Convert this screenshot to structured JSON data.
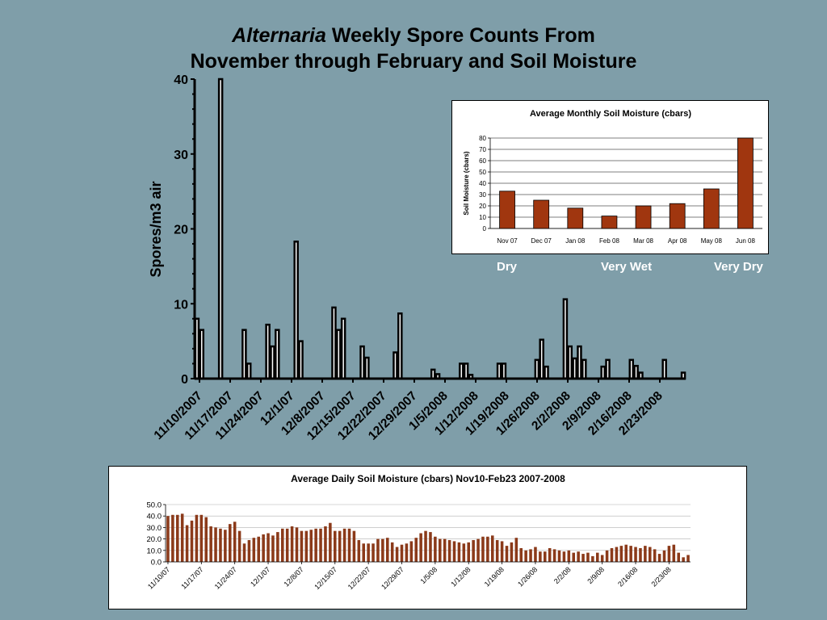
{
  "title": {
    "italic": "Alternaria",
    "rest_line1": "Weekly Spore Counts From",
    "line2": "November through February and Soil Moisture"
  },
  "labels": {
    "dry": "Dry",
    "very_wet": "Very Wet",
    "very_dry": "Very Dry"
  },
  "colors": {
    "background": "#7f9ea9",
    "bar_fill": "#a0360f"
  },
  "chart_data": [
    {
      "type": "bar",
      "title": "",
      "ylabel": "Spores/m3 air",
      "xlabel": "",
      "ylim": [
        0,
        40
      ],
      "yticks": [
        "0",
        "10",
        "20",
        "30",
        "40"
      ],
      "xtick_labels": [
        "11/10/2007",
        "11/17/2007",
        "11/24/2007",
        "12/1/07",
        "12/8/2007",
        "12/15/2007",
        "12/22/2007",
        "12/29/2007",
        "1/5/2008",
        "1/12/2008",
        "1/19/2008",
        "1/26/2008",
        "2/2/2008",
        "2/9/2008",
        "2/16/2008",
        "2/23/2008"
      ],
      "values": [
        8,
        6.5,
        0,
        0,
        0,
        40,
        0,
        0,
        0,
        0,
        6.5,
        2,
        0,
        0,
        0,
        7.2,
        4.3,
        6.5,
        0,
        0,
        0,
        18.3,
        5,
        0,
        0,
        0,
        0,
        0,
        0,
        9.5,
        6.5,
        8,
        0,
        0,
        0,
        4.3,
        2.8,
        0,
        0,
        0,
        0,
        0,
        3.5,
        8.7,
        0,
        0,
        0,
        0,
        0,
        0,
        1.2,
        0.6,
        0,
        0,
        0,
        0,
        2,
        2,
        0.5,
        0,
        0,
        0,
        0,
        0,
        2,
        2,
        0,
        0,
        0,
        0,
        0,
        0,
        2.5,
        5.2,
        1.6,
        0,
        0,
        0,
        10.6,
        4.3,
        2.7,
        4.3,
        2.5,
        0,
        0,
        0,
        1.6,
        2.5,
        0,
        0,
        0,
        0,
        2.5,
        1.7,
        0.8,
        0,
        0,
        0,
        0,
        2.5,
        0,
        0,
        0,
        0.8
      ]
    },
    {
      "type": "bar",
      "title": "Average Monthly Soil Moisture (cbars)",
      "ylabel": "Soil Moisture (cbars)",
      "xlabel": "",
      "ylim": [
        0,
        80
      ],
      "yticks": [
        "0",
        "10",
        "20",
        "30",
        "40",
        "50",
        "60",
        "70",
        "80"
      ],
      "grid": true,
      "categories": [
        "Nov 07",
        "Dec 07",
        "Jan 08",
        "Feb 08",
        "Mar 08",
        "Apr 08",
        "May 08",
        "Jun 08"
      ],
      "values": [
        33,
        25,
        18,
        11,
        20,
        22,
        35,
        80
      ]
    },
    {
      "type": "bar",
      "title": "Average Daily Soil Moisture (cbars) Nov10-Feb23 2007-2008",
      "ylabel": "",
      "xlabel": "",
      "ylim": [
        0,
        50
      ],
      "yticks": [
        "0.0",
        "10.0",
        "20.0",
        "30.0",
        "40.0",
        "50.0"
      ],
      "grid": true,
      "xtick_labels": [
        "11/10/07",
        "11/17/07",
        "11/24/07",
        "12/1/07",
        "12/8/07",
        "12/15/07",
        "12/22/07",
        "12/29/07",
        "1/5/08",
        "1/12/08",
        "1/19/08",
        "1/26/08",
        "2/2/08",
        "2/9/08",
        "2/16/08",
        "2/23/08"
      ],
      "values": [
        40,
        41,
        41,
        42,
        32,
        36,
        41,
        41,
        39,
        31,
        30,
        29,
        28,
        33,
        35,
        27,
        16,
        19,
        21,
        22,
        24,
        25,
        23,
        26,
        29,
        29,
        31,
        30,
        27,
        27,
        28,
        29,
        29,
        31,
        34,
        27,
        27,
        29,
        29,
        27,
        19,
        16,
        16,
        16,
        20,
        20,
        21,
        17,
        13,
        15,
        16,
        18,
        21,
        25,
        27,
        26,
        22,
        20,
        20,
        19,
        18,
        17,
        16,
        17,
        19,
        20,
        22,
        22,
        23,
        19,
        18,
        14,
        17,
        21,
        12,
        10,
        11,
        13,
        9,
        9,
        12,
        11,
        10,
        9,
        10,
        8,
        9,
        7,
        8,
        5,
        8,
        6,
        10,
        12,
        13,
        14,
        15,
        14,
        13,
        12,
        14,
        13,
        11,
        7,
        10,
        14,
        15,
        8,
        4,
        6
      ]
    }
  ]
}
